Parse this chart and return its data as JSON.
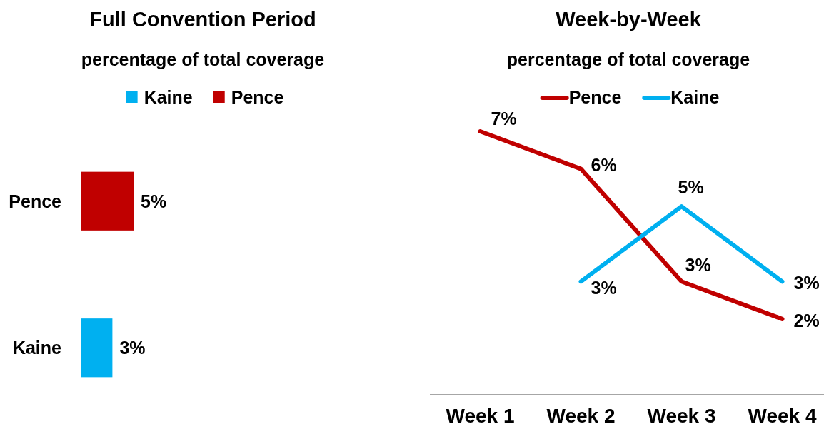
{
  "chart_data": [
    {
      "type": "bar",
      "orientation": "horizontal",
      "stacked": true,
      "title": "Full Convention Period",
      "subtitle": "percentage of total coverage",
      "categories": [
        "Pence",
        "Kaine"
      ],
      "tick_labels": "y",
      "legend": "top",
      "series": [
        {
          "name": "Kaine",
          "color": "#00b0f0",
          "values": [
            null,
            3
          ],
          "value_labels": [
            null,
            "3%"
          ]
        },
        {
          "name": "Pence",
          "color": "#c00000",
          "values": [
            5,
            null
          ],
          "value_labels": [
            "5%",
            null
          ]
        }
      ]
    },
    {
      "type": "line",
      "title": "Week-by-Week",
      "subtitle": "percentage of total coverage",
      "categories": [
        "Week 1",
        "Week 2",
        "Week 3",
        "Week 4"
      ],
      "tick_labels": "x",
      "legend": "top",
      "series": [
        {
          "name": "Pence",
          "color": "#c00000",
          "values": [
            7,
            6,
            3,
            2
          ],
          "value_labels": [
            "7%",
            "6%",
            "3%",
            "2%"
          ]
        },
        {
          "name": "Kaine",
          "color": "#00b0f0",
          "values": [
            null,
            3,
            5,
            3
          ],
          "value_labels": [
            null,
            "3%",
            "5%",
            "3%"
          ]
        }
      ]
    }
  ]
}
